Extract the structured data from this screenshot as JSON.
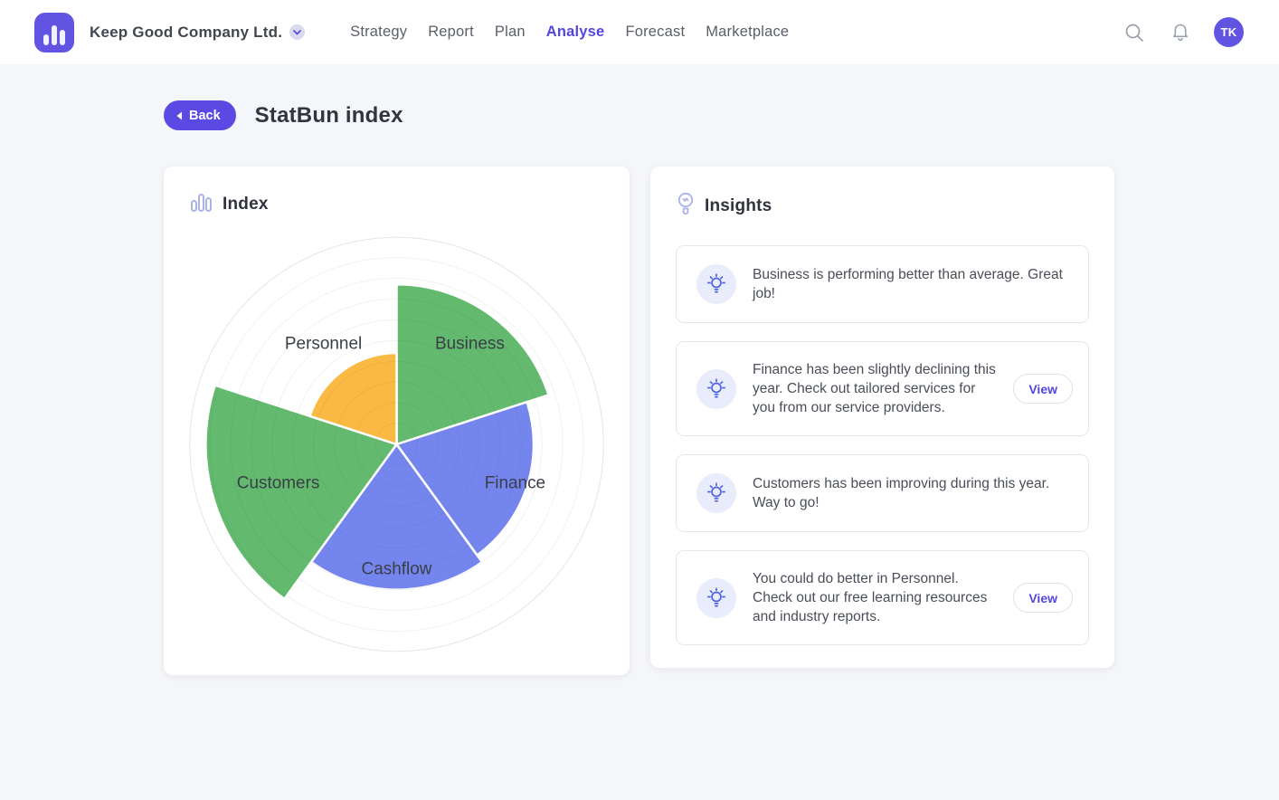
{
  "nav": {
    "company": "Keep Good Company Ltd.",
    "items": [
      {
        "label": "Strategy"
      },
      {
        "label": "Report"
      },
      {
        "label": "Plan"
      },
      {
        "label": "Analyse",
        "active": true
      },
      {
        "label": "Forecast"
      },
      {
        "label": "Marketplace"
      }
    ],
    "avatar_initials": "TK"
  },
  "page": {
    "back_label": "Back",
    "title": "StatBun index"
  },
  "index_card": {
    "title": "Index"
  },
  "insights_card": {
    "title": "Insights",
    "items": [
      {
        "text": "Business is performing better than average. Great job!",
        "has_view": false
      },
      {
        "text": "Finance has been slightly declining this year. Check out tailored services for you from our service providers.",
        "has_view": true,
        "view_label": "View"
      },
      {
        "text": "Customers has been improving during this year. Way to go!",
        "has_view": false
      },
      {
        "text": "You could do better in Personnel. Check out our free learning resources and industry reports.",
        "has_view": true,
        "view_label": "View"
      }
    ]
  },
  "chart_data": {
    "type": "polar-area",
    "title": "Index",
    "categories": [
      "Business",
      "Finance",
      "Cashflow",
      "Customers",
      "Personnel"
    ],
    "values": [
      77,
      66,
      70,
      92,
      44
    ],
    "max": 100,
    "start_angle_deg": 0,
    "sector_width_deg": 72,
    "direction": "clockwise",
    "colors": {
      "Business": "#63b96d",
      "Finance": "#7585ee",
      "Cashflow": "#7585ee",
      "Customers": "#63b96d",
      "Personnel": "#f9b942"
    },
    "grid": {
      "rings": 10,
      "ring_color": "rgba(70,70,105,0.07)",
      "outer_ring_color": "#e4e5ec"
    },
    "separator_color": "#ffffff",
    "label_color": "#3a3e47"
  },
  "theme": {
    "accent": "#5246e3",
    "button_purple": "#5b49e4",
    "logo_purple": "#6254e3",
    "icon_gray": "#9aa0a8",
    "bulb_blue": "#5064dd",
    "light_icon_purple": "#a9b3ea"
  }
}
